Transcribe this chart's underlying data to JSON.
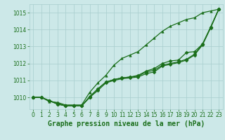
{
  "xlabel": "Graphe pression niveau de la mer (hPa)",
  "x": [
    0,
    1,
    2,
    3,
    4,
    5,
    6,
    7,
    8,
    9,
    10,
    11,
    12,
    13,
    14,
    15,
    16,
    17,
    18,
    19,
    20,
    21,
    22,
    23
  ],
  "series": [
    [
      1010.0,
      1010.0,
      1009.8,
      1009.6,
      1009.5,
      1009.5,
      1009.5,
      1010.0,
      1010.4,
      1010.85,
      1011.0,
      1011.1,
      1011.15,
      1011.2,
      1011.4,
      1011.5,
      1011.85,
      1011.95,
      1012.05,
      1012.2,
      1012.5,
      1013.1,
      1014.1,
      1015.2
    ],
    [
      1010.0,
      1010.0,
      1009.8,
      1009.6,
      1009.5,
      1009.5,
      1009.5,
      1010.0,
      1010.5,
      1010.9,
      1011.05,
      1011.15,
      1011.2,
      1011.25,
      1011.5,
      1011.6,
      1011.9,
      1012.0,
      1012.1,
      1012.25,
      1012.55,
      1013.15,
      1014.15,
      1015.2
    ],
    [
      1010.0,
      1010.0,
      1009.8,
      1009.65,
      1009.5,
      1009.5,
      1009.5,
      1010.05,
      1010.5,
      1010.9,
      1011.05,
      1011.15,
      1011.2,
      1011.3,
      1011.55,
      1011.7,
      1012.0,
      1012.15,
      1012.2,
      1012.65,
      1012.7,
      1013.15,
      1014.15,
      1015.2
    ],
    [
      1010.0,
      1010.0,
      1009.75,
      1009.7,
      1009.55,
      1009.55,
      1009.55,
      1010.3,
      1010.85,
      1011.3,
      1011.9,
      1012.3,
      1012.5,
      1012.7,
      1013.1,
      1013.5,
      1013.9,
      1014.2,
      1014.4,
      1014.6,
      1014.7,
      1015.0,
      1015.1,
      1015.2
    ]
  ],
  "line_color": "#1a6e1a",
  "marker_color": "#1a6e1a",
  "bg_color": "#cce8e8",
  "grid_color": "#a8cece",
  "label_color": "#1a6e1a",
  "ylim": [
    1009.3,
    1015.5
  ],
  "yticks": [
    1010,
    1011,
    1012,
    1013,
    1014,
    1015
  ],
  "xticks": [
    0,
    1,
    2,
    3,
    4,
    5,
    6,
    7,
    8,
    9,
    10,
    11,
    12,
    13,
    14,
    15,
    16,
    17,
    18,
    19,
    20,
    21,
    22,
    23
  ],
  "xlabel_fontsize": 7,
  "tick_fontsize": 5.5,
  "markersize": 2.5,
  "linewidth": 0.9
}
